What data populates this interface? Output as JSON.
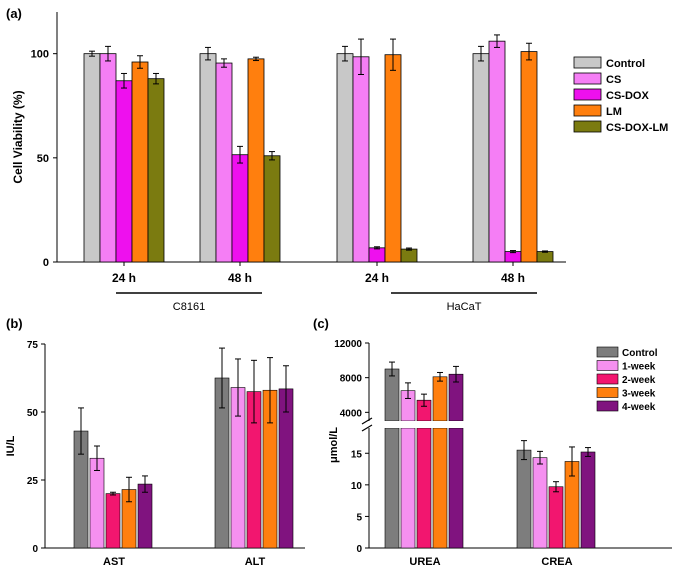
{
  "colors": {
    "a": {
      "Control": "#c8c8c8",
      "CS": "#f57ef5",
      "CS-DOX": "#ee10ee",
      "LM": "#ff7f0e",
      "CS-DOX-LM": "#7b7b10"
    },
    "bc": {
      "Control": "#7d7d7d",
      "1-week": "#f590f0",
      "2-week": "#f2166f",
      "3-week": "#ff7f0e",
      "4-week": "#80137f"
    }
  },
  "chart_data": [
    {
      "panel": "(a)",
      "type": "bar",
      "ylabel": "Cell Viability (%)",
      "ylim": [
        0,
        120
      ],
      "yticks": [
        0,
        50,
        100
      ],
      "categories": [
        "24 h",
        "48 h",
        "24 h",
        "48 h"
      ],
      "groups": [
        {
          "label": "C8161",
          "categories": [
            0,
            1
          ]
        },
        {
          "label": "HaCaT",
          "categories": [
            2,
            3
          ]
        }
      ],
      "legend_position": "right",
      "series": [
        {
          "name": "Control",
          "values": [
            100,
            100,
            100,
            100
          ],
          "errors": [
            1.2,
            3,
            3.5,
            3.5
          ]
        },
        {
          "name": "CS",
          "values": [
            100,
            95.5,
            98.5,
            106
          ],
          "errors": [
            3.5,
            2,
            8.5,
            3
          ]
        },
        {
          "name": "CS-DOX",
          "values": [
            87,
            51.5,
            6.8,
            5
          ],
          "errors": [
            3.5,
            4,
            0.5,
            0.5
          ]
        },
        {
          "name": "LM",
          "values": [
            96,
            97.5,
            99.5,
            101
          ],
          "errors": [
            3,
            0.8,
            7.5,
            4
          ]
        },
        {
          "name": "CS-DOX-LM",
          "values": [
            88,
            51,
            6.2,
            5
          ],
          "errors": [
            2.5,
            2,
            0.5,
            0.3
          ]
        }
      ]
    },
    {
      "panel": "(b)",
      "type": "bar",
      "ylabel": "IU/L",
      "ylim": [
        0,
        75
      ],
      "yticks": [
        0,
        25,
        50,
        75
      ],
      "categories": [
        "AST",
        "ALT"
      ],
      "series": [
        {
          "name": "Control",
          "values": [
            43,
            62.5
          ],
          "errors": [
            8.5,
            11
          ]
        },
        {
          "name": "1-week",
          "values": [
            33,
            59
          ],
          "errors": [
            4.5,
            10.5
          ]
        },
        {
          "name": "2-week",
          "values": [
            20,
            57.5
          ],
          "errors": [
            0.5,
            11.5
          ]
        },
        {
          "name": "3-week",
          "values": [
            21.5,
            58
          ],
          "errors": [
            4.5,
            12
          ]
        },
        {
          "name": "4-week",
          "values": [
            23.5,
            58.5
          ],
          "errors": [
            3,
            8.5
          ]
        }
      ]
    },
    {
      "panel": "(c)",
      "type": "bar",
      "ylabel": "μmol/L",
      "axis_break": true,
      "upper_ylim": [
        3000,
        12000
      ],
      "upper_yticks": [
        4000,
        8000,
        12000
      ],
      "lower_ylim": [
        0,
        19
      ],
      "lower_yticks": [
        0,
        5,
        10,
        15
      ],
      "categories": [
        "UREA",
        "CREA"
      ],
      "legend_position": "top-right",
      "series": [
        {
          "name": "Control",
          "values": [
            9000,
            15.5
          ],
          "errors": [
            800,
            1.5
          ]
        },
        {
          "name": "1-week",
          "values": [
            6500,
            14.3
          ],
          "errors": [
            900,
            1
          ]
        },
        {
          "name": "2-week",
          "values": [
            5400,
            9.7
          ],
          "errors": [
            700,
            0.8
          ]
        },
        {
          "name": "3-week",
          "values": [
            8100,
            13.7
          ],
          "errors": [
            500,
            2.3
          ]
        },
        {
          "name": "4-week",
          "values": [
            8400,
            15.2
          ],
          "errors": [
            900,
            0.7
          ]
        }
      ]
    }
  ]
}
